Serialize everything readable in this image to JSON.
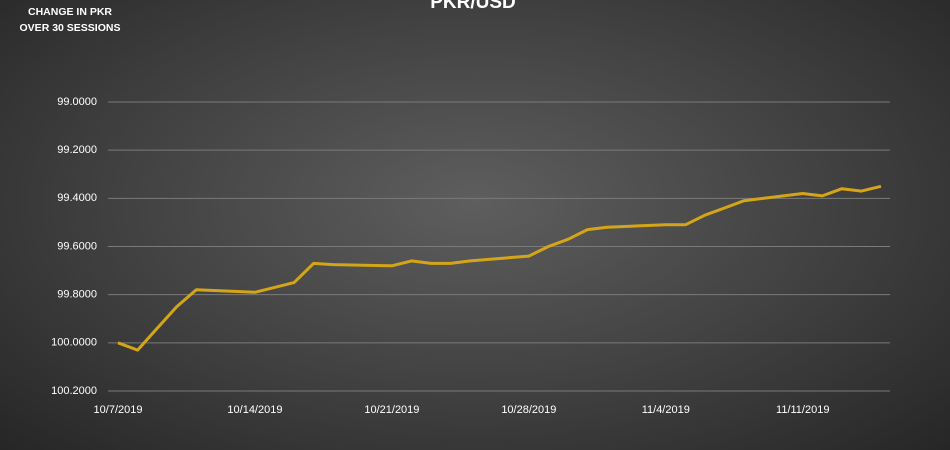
{
  "chart_data": {
    "type": "line",
    "title": "PKR/USD",
    "y_label": "CHANGE IN PKR OVER 30 SESSIONS",
    "x": [
      "10/7/2019",
      "10/8/2019",
      "10/9/2019",
      "10/10/2019",
      "10/11/2019",
      "10/14/2019",
      "10/15/2019",
      "10/16/2019",
      "10/17/2019",
      "10/18/2019",
      "10/21/2019",
      "10/22/2019",
      "10/23/2019",
      "10/24/2019",
      "10/25/2019",
      "10/28/2019",
      "10/29/2019",
      "10/30/2019",
      "10/31/2019",
      "11/1/2019",
      "11/4/2019",
      "11/5/2019",
      "11/6/2019",
      "11/7/2019",
      "11/8/2019",
      "11/11/2019",
      "11/12/2019",
      "11/13/2019",
      "11/14/2019",
      "11/15/2019"
    ],
    "series": [
      {
        "name": "PKR/USD",
        "color": "#d4a617",
        "values": [
          100.0,
          100.03,
          99.94,
          99.85,
          99.78,
          99.79,
          99.77,
          99.75,
          99.67,
          99.675,
          99.68,
          99.66,
          99.67,
          99.67,
          99.66,
          99.64,
          99.6,
          99.57,
          99.53,
          99.52,
          99.51,
          99.51,
          99.47,
          99.44,
          99.41,
          99.38,
          99.39,
          99.36,
          99.37,
          99.35
        ]
      }
    ],
    "xlim": [
      "10/7/2019",
      "11/15/2019"
    ],
    "xticks": [
      "10/7/2019",
      "10/14/2019",
      "10/21/2019",
      "10/28/2019",
      "11/4/2019",
      "11/11/2019"
    ],
    "ylim": [
      99.0,
      100.2
    ],
    "y_inverted": true,
    "yticks": [
      {
        "value": 99.0,
        "label": "99.0000"
      },
      {
        "value": 99.2,
        "label": "99.2000"
      },
      {
        "value": 99.4,
        "label": "99.4000"
      },
      {
        "value": 99.6,
        "label": "99.6000"
      },
      {
        "value": 99.8,
        "label": "99.8000"
      },
      {
        "value": 100.0,
        "label": "100.0000"
      },
      {
        "value": 100.2,
        "label": "100.2000"
      }
    ],
    "grid": true
  }
}
